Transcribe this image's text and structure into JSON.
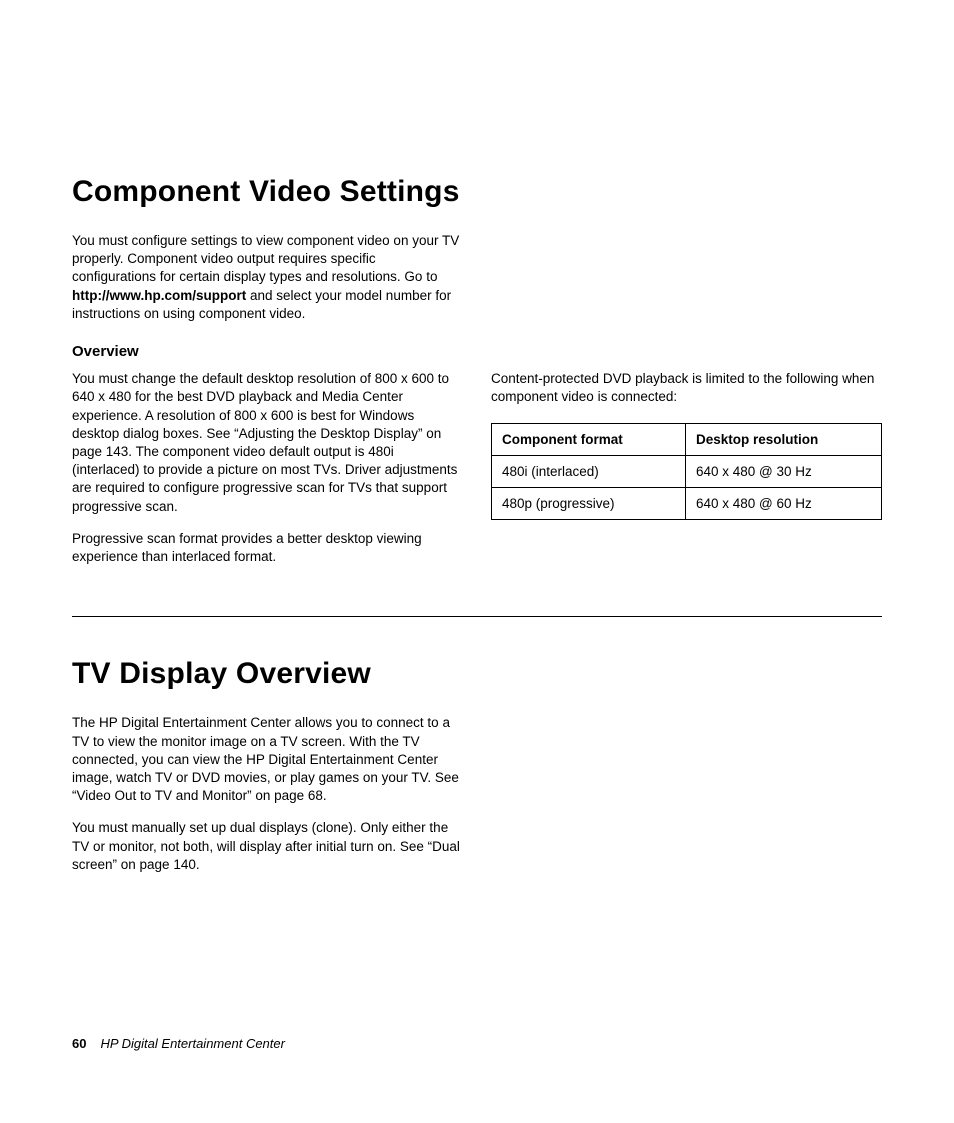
{
  "section1": {
    "title": "Component Video Settings",
    "intro_a": "You must configure settings to view component video on your TV properly. Component video output requires specific configurations for certain display types and resolutions. Go to ",
    "intro_link": "http://www.hp.com/support",
    "intro_b": " and select your model number for instructions on using component video.",
    "overview_heading": "Overview",
    "overview_p1": "You must change the default desktop resolution of 800 x 600 to 640 x 480 for the best DVD playback and Media Center experience. A resolution of 800 x 600 is best for Windows desktop dialog boxes. See “Adjusting the Desktop Display” on page 143. The component video default output is 480i (interlaced) to provide a picture on most TVs. Driver adjustments are required to configure progressive scan for TVs that support progressive scan.",
    "overview_p2": "Progressive scan format provides a better desktop viewing experience than interlaced format.",
    "right_intro": "Content-protected DVD playback is limited to the following when component video is connected:",
    "table": {
      "headers": [
        "Component format",
        "Desktop resolution"
      ],
      "rows": [
        [
          "480i (interlaced)",
          "640 x 480 @ 30 Hz"
        ],
        [
          "480p (progressive)",
          "640 x 480 @ 60 Hz"
        ]
      ]
    }
  },
  "section2": {
    "title": "TV Display Overview",
    "p1": "The HP Digital Entertainment Center allows you to connect to a TV to view the monitor image on a TV screen. With the TV connected, you can view the HP Digital Entertainment Center image, watch TV or DVD movies, or play games on your TV. See “Video Out to TV and Monitor” on page 68.",
    "p2": "You must manually set up dual displays (clone). Only either the TV or monitor, not both, will display after initial turn on. See “Dual screen” on page 140."
  },
  "footer": {
    "page": "60",
    "title": "HP Digital Entertainment Center"
  },
  "style": {
    "text_color": "#000000",
    "background": "#ffffff",
    "heading_fontsize_pt": 30,
    "body_fontsize_pt": 13.5,
    "subheading_fontsize_pt": 15,
    "rule_color": "#000000",
    "table_border_color": "#000000",
    "font_family": "Futura / Trebuchet-like sans-serif"
  }
}
